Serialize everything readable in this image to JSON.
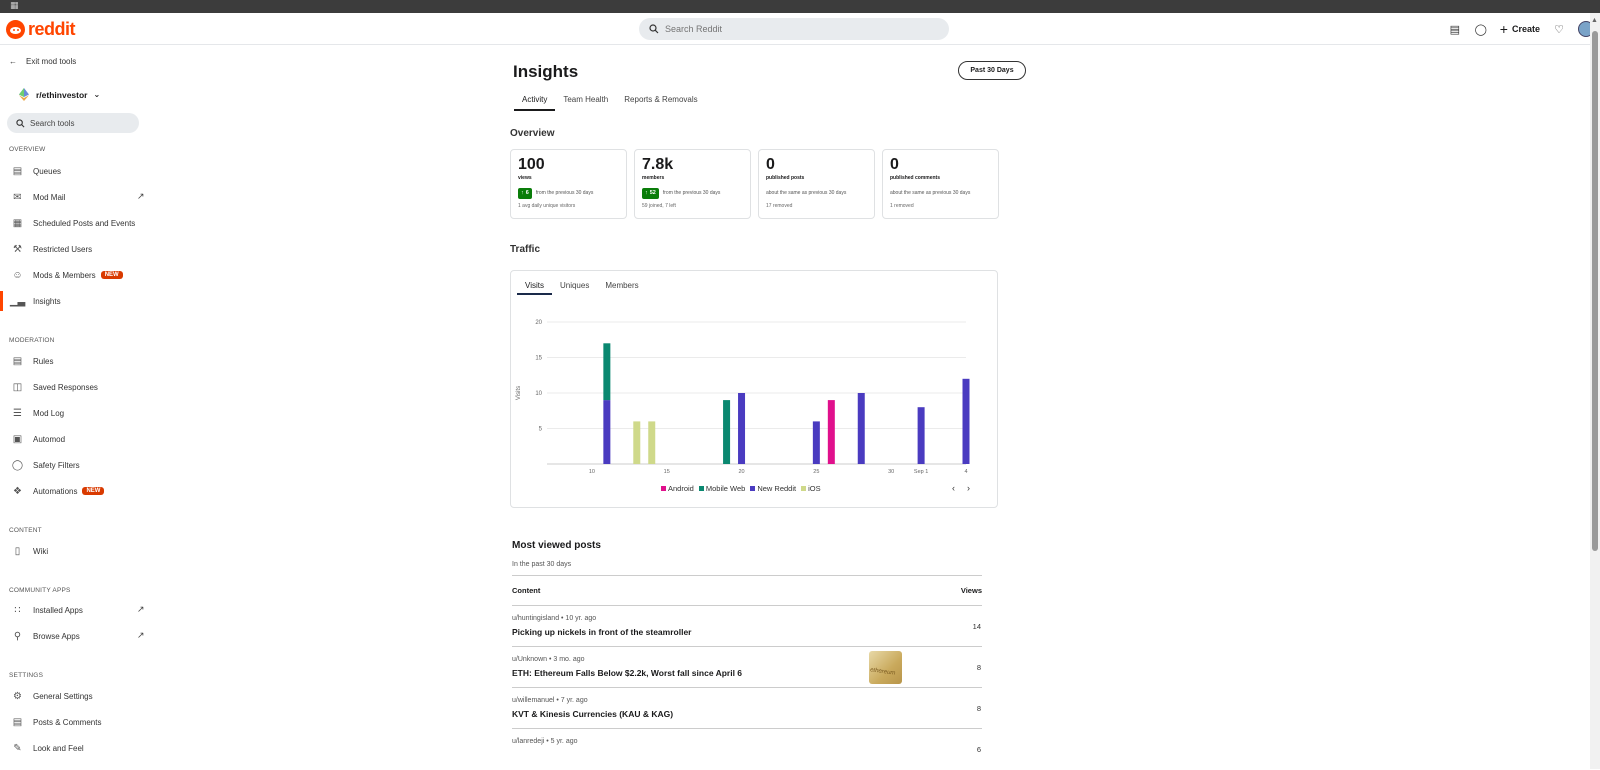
{
  "os": {
    "icon": "grid-icon"
  },
  "header": {
    "logo_text": "reddit",
    "search_placeholder": "Search Reddit",
    "create_label": "Create"
  },
  "sidebar": {
    "exit_label": "Exit mod tools",
    "subreddit": "r/ethinvestor",
    "search_placeholder": "Search tools",
    "sections": {
      "overview": "OVERVIEW",
      "moderation": "MODERATION",
      "content": "CONTENT",
      "community_apps": "COMMUNITY APPS",
      "settings": "SETTINGS"
    },
    "items": {
      "queues": "Queues",
      "mod_mail": "Mod Mail",
      "scheduled": "Scheduled Posts and Events",
      "restricted": "Restricted Users",
      "mods_members": "Mods & Members",
      "insights": "Insights",
      "rules": "Rules",
      "saved_responses": "Saved Responses",
      "mod_log": "Mod Log",
      "automod": "Automod",
      "safety_filters": "Safety Filters",
      "automations": "Automations",
      "wiki": "Wiki",
      "installed_apps": "Installed Apps",
      "browse_apps": "Browse Apps",
      "general_settings": "General Settings",
      "posts_comments": "Posts & Comments",
      "look_feel": "Look and Feel"
    },
    "new_badge": "NEW"
  },
  "main": {
    "title": "Insights",
    "range_button": "Past 30 Days",
    "tabs": [
      "Activity",
      "Team Health",
      "Reports & Removals"
    ],
    "overview_title": "Overview",
    "cards": [
      {
        "value": "100",
        "label": "views",
        "badge": "6",
        "change": "from the previous 30 days",
        "sub": "1 avg daily unique visitors"
      },
      {
        "value": "7.8k",
        "label": "members",
        "badge": "52",
        "change": "from the previous 30 days",
        "sub": "59 joined, 7 left"
      },
      {
        "value": "0",
        "label": "published posts",
        "badge": "",
        "change": "about the same as previous 30 days",
        "sub": "17 removed"
      },
      {
        "value": "0",
        "label": "published comments",
        "badge": "",
        "change": "about the same as previous 30 days",
        "sub": "1 removed"
      }
    ],
    "traffic_title": "Traffic",
    "traffic_tabs": [
      "Visits",
      "Uniques",
      "Members"
    ],
    "most_viewed": {
      "title": "Most viewed posts",
      "subtitle": "In the past 30 days",
      "col_content": "Content",
      "col_views": "Views",
      "rows": [
        {
          "meta": "u/huntingisland • 10 yr. ago",
          "title": "Picking up nickels in front of the steamroller",
          "views": "14",
          "thumb": ""
        },
        {
          "meta": "u/Unknown • 3 mo. ago",
          "title": "ETH: Ethereum Falls Below $2.2k, Worst fall since April 6",
          "views": "8",
          "thumb": "ethereum"
        },
        {
          "meta": "u/willemanuel • 7 yr. ago",
          "title": "KVT & Kinesis Currencies (KAU & KAG)",
          "views": "8",
          "thumb": ""
        },
        {
          "meta": "u/lanredeji • 5 yr. ago",
          "title": "",
          "views": "6",
          "thumb": ""
        }
      ]
    }
  },
  "chart_data": {
    "type": "bar",
    "ylabel": "Visits",
    "ylim": [
      0,
      20
    ],
    "yticks": [
      5,
      10,
      15,
      20
    ],
    "xticks": [
      {
        "label": "10",
        "day": 10
      },
      {
        "label": "15",
        "day": 15
      },
      {
        "label": "20",
        "day": 20
      },
      {
        "label": "25",
        "day": 25
      },
      {
        "label": "30",
        "day": 30
      },
      {
        "label": "Sep 1",
        "day": 32
      },
      {
        "label": "4",
        "day": 35
      }
    ],
    "series_colors": {
      "Android": "#e0108c",
      "Mobile Web": "#0a8870",
      "New Reddit": "#4a3bc0",
      "iOS": "#cfd98a"
    },
    "legend": [
      "Android",
      "Mobile Web",
      "New Reddit",
      "iOS"
    ],
    "bars": [
      {
        "day": 11,
        "stack": [
          {
            "series": "New Reddit",
            "value": 9
          },
          {
            "series": "Mobile Web",
            "value": 8
          }
        ]
      },
      {
        "day": 13,
        "stack": [
          {
            "series": "iOS",
            "value": 6
          }
        ]
      },
      {
        "day": 14,
        "stack": [
          {
            "series": "iOS",
            "value": 6
          }
        ]
      },
      {
        "day": 19,
        "stack": [
          {
            "series": "Mobile Web",
            "value": 9
          }
        ]
      },
      {
        "day": 20,
        "stack": [
          {
            "series": "New Reddit",
            "value": 10
          }
        ]
      },
      {
        "day": 25,
        "stack": [
          {
            "series": "New Reddit",
            "value": 6
          }
        ]
      },
      {
        "day": 26,
        "stack": [
          {
            "series": "Android",
            "value": 9
          }
        ]
      },
      {
        "day": 28,
        "stack": [
          {
            "series": "New Reddit",
            "value": 10
          }
        ]
      },
      {
        "day": 32,
        "stack": [
          {
            "series": "New Reddit",
            "value": 8
          }
        ]
      },
      {
        "day": 35,
        "stack": [
          {
            "series": "New Reddit",
            "value": 12
          }
        ]
      }
    ]
  }
}
